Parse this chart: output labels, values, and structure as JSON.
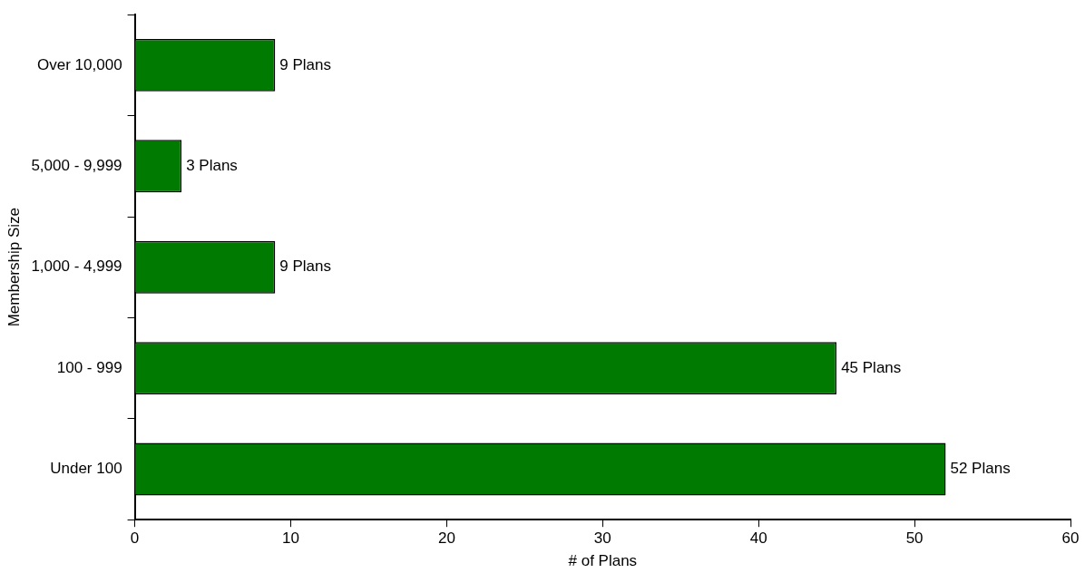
{
  "chart_data": {
    "type": "bar",
    "orientation": "horizontal",
    "categories": [
      "Over 10,000",
      "5,000 - 9,999",
      "1,000 - 4,999",
      "100 - 999",
      "Under 100"
    ],
    "values": [
      9,
      3,
      9,
      45,
      52
    ],
    "value_labels": [
      "9 Plans",
      "3 Plans",
      "9 Plans",
      "45 Plans",
      "52 Plans"
    ],
    "color": "#007a00",
    "xlim": [
      0,
      60
    ],
    "xticks": [
      0,
      10,
      20,
      30,
      40,
      50,
      60
    ],
    "xlabel": "# of Plans",
    "ylabel": "Membership Size"
  }
}
